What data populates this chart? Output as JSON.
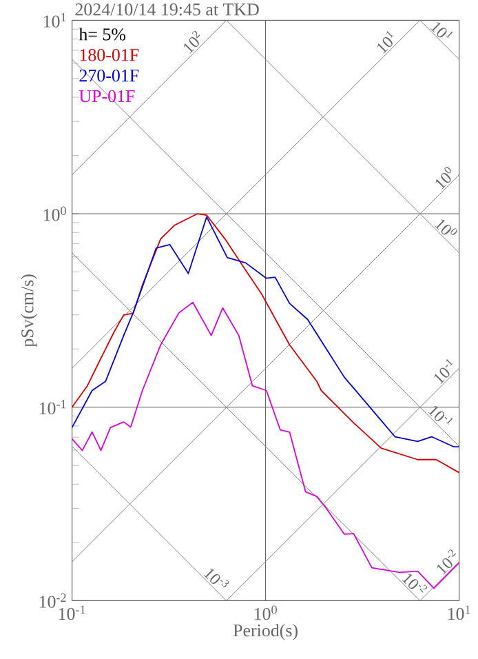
{
  "chart_data": {
    "type": "line",
    "title": "2024/10/14 19:45 at TKD",
    "xlabel": "Period(s)",
    "ylabel": "pSv(cm/s)",
    "log": "xy",
    "grid": true,
    "legend": "top left",
    "xlim": [
      0.1,
      10
    ],
    "ylim": [
      0.01,
      10
    ],
    "xticks": [
      {
        "value": 0.1,
        "label": "10$^{-1}$"
      },
      {
        "value": 1,
        "label": "10$^{0}$"
      },
      {
        "value": 10,
        "label": "10$^{1}$"
      }
    ],
    "yticks": [
      {
        "value": 0.01,
        "label": "10$^{-2}$"
      },
      {
        "value": 0.1,
        "label": "10$^{-1}$"
      },
      {
        "value": 1,
        "label": "10$^{0}$"
      },
      {
        "value": 10,
        "label": "10$^{1}$"
      }
    ],
    "annotations": [
      "h= 5%",
      {
        "text": "10$^{2}$",
        "x": 0.45,
        "y": 7.2
      },
      {
        "text": "10$^{1}$",
        "x": 4.5,
        "y": 7.2
      },
      {
        "text": "10$^{0}$",
        "x": 9,
        "y": 1.43
      },
      {
        "text": "10$^{-1}$",
        "x": 9,
        "y": 0.143
      },
      {
        "text": "10$^{-2}$",
        "x": 9.3,
        "y": 0.0148
      },
      {
        "text": "10$^{1}$",
        "x": 7.6,
        "y": 8.2
      },
      {
        "text": "10$^{0}$",
        "x": 8,
        "y": 0.785
      },
      {
        "text": "10$^{-1}$",
        "x": 7.5,
        "y": 0.084
      },
      {
        "text": "10$^{-2}$",
        "x": 5.5,
        "y": 0.0114
      },
      {
        "text": "10$^{-3}$",
        "x": 0.52,
        "y": 0.0121
      }
    ],
    "series": [
      {
        "color": "#808080",
        "x": [
          0.1,
          0.628
        ],
        "values": [
          1.59,
          10
        ]
      },
      {
        "color": "#808080",
        "x": [
          0.1,
          6.28
        ],
        "values": [
          0.159,
          10
        ]
      },
      {
        "color": "#808080",
        "x": [
          0.1,
          10
        ],
        "values": [
          0.0159,
          1.59
        ]
      },
      {
        "color": "#808080",
        "x": [
          0.628,
          10
        ],
        "values": [
          0.01,
          0.159
        ]
      },
      {
        "color": "#808080",
        "x": [
          6.28,
          10
        ],
        "values": [
          0.01,
          0.0159
        ]
      },
      {
        "color": "#808080",
        "x": [
          6.28,
          10
        ],
        "values": [
          10,
          6.28
        ]
      },
      {
        "color": "#808080",
        "x": [
          0.628,
          10
        ],
        "values": [
          10,
          0.628
        ]
      },
      {
        "color": "#808080",
        "x": [
          0.1,
          10
        ],
        "values": [
          6.28,
          0.0628
        ]
      },
      {
        "color": "#808080",
        "x": [
          0.1,
          6.28
        ],
        "values": [
          0.628,
          0.01
        ]
      },
      {
        "color": "#808080",
        "x": [
          0.1,
          0.628
        ],
        "values": [
          0.0628,
          0.01
        ]
      },
      {
        "name": "180-01F",
        "color": "#dd0000",
        "x": [
          0.1,
          0.12,
          0.141,
          0.166,
          0.185,
          0.207,
          0.231,
          0.287,
          0.339,
          0.445,
          0.496,
          0.617,
          0.767,
          0.955,
          1.33,
          1.84,
          1.94,
          2.85,
          3.96,
          6.11,
          7.62,
          10
        ],
        "values": [
          0.1,
          0.129,
          0.179,
          0.248,
          0.3,
          0.306,
          0.428,
          0.741,
          0.873,
          1.0,
          0.984,
          0.741,
          0.533,
          0.384,
          0.21,
          0.136,
          0.122,
          0.083,
          0.0614,
          0.0536,
          0.0536,
          0.0459
        ]
      },
      {
        "name": "270-01F",
        "color": "#0000dd",
        "x": [
          0.1,
          0.127,
          0.149,
          0.185,
          0.207,
          0.272,
          0.32,
          0.399,
          0.496,
          0.634,
          0.789,
          1.01,
          1.12,
          1.33,
          1.65,
          2.55,
          3.96,
          4.66,
          6.11,
          7.21,
          9.4,
          10
        ],
        "values": [
          0.0786,
          0.122,
          0.136,
          0.235,
          0.308,
          0.664,
          0.693,
          0.491,
          0.963,
          0.594,
          0.557,
          0.464,
          0.47,
          0.344,
          0.284,
          0.143,
          0.0853,
          0.0704,
          0.0666,
          0.0704,
          0.0624,
          0.0624
        ]
      },
      {
        "name": "UP-01F",
        "color": "#dd00dd",
        "x": [
          0.1,
          0.113,
          0.127,
          0.141,
          0.158,
          0.185,
          0.201,
          0.231,
          0.287,
          0.357,
          0.421,
          0.524,
          0.601,
          0.727,
          0.855,
          1.01,
          1.19,
          1.33,
          1.61,
          1.84,
          2.05,
          2.55,
          2.85,
          3.54,
          4.92,
          6.11,
          7.41,
          10
        ],
        "values": [
          0.0686,
          0.0598,
          0.0744,
          0.0598,
          0.0786,
          0.0839,
          0.079,
          0.122,
          0.21,
          0.308,
          0.348,
          0.235,
          0.326,
          0.235,
          0.129,
          0.122,
          0.0764,
          0.0744,
          0.0365,
          0.0346,
          0.0302,
          0.0221,
          0.0222,
          0.0148,
          0.014,
          0.0142,
          0.0116,
          0.0157
        ]
      }
    ]
  }
}
